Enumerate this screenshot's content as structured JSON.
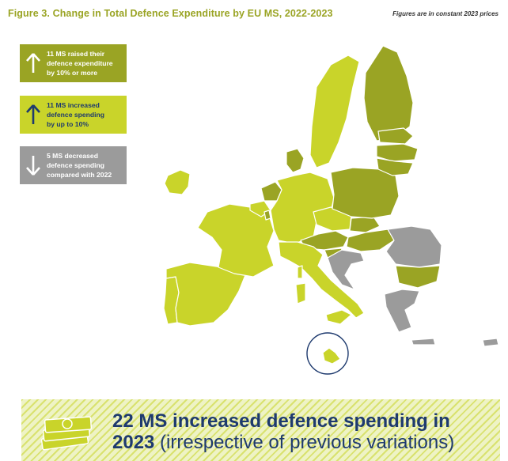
{
  "header": {
    "title": "Figure 3. Change in Total Defence Expenditure by EU MS, 2022-2023",
    "note": "Figures are in constant 2023 prices"
  },
  "legend": [
    {
      "text_lines": [
        "11 MS raised their",
        "defence expenditure",
        "by 10% or more"
      ],
      "color": "#9aa424",
      "arrow": "up-white",
      "arrow_color": "#ffffff"
    },
    {
      "text_lines": [
        "11 MS increased",
        "defence spending",
        "by up to 10%"
      ],
      "color": "#c9d42a",
      "arrow": "up-navy",
      "arrow_color": "#1e3a6e"
    },
    {
      "text_lines": [
        "5 MS decreased",
        "defence spending",
        "compared with 2022"
      ],
      "color": "#9b9b9b",
      "arrow": "down-white",
      "arrow_color": "#ffffff"
    }
  ],
  "colors": {
    "title": "#9aa424",
    "navy": "#1e3a6e",
    "raised_10plus": "#9aa424",
    "increased_up_to_10": "#c9d42a",
    "decreased": "#9b9b9b",
    "non_eu": "#ffffff"
  },
  "banner": {
    "strong_line1": "22 MS increased defence spending in",
    "strong_year": "2023",
    "rest": " (irrespective of previous variations)",
    "icon": "money-banknotes-icon"
  }
}
